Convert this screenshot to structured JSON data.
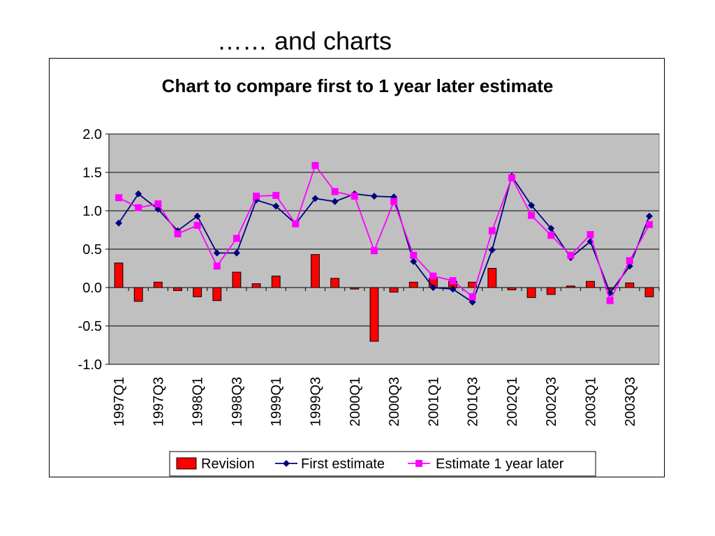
{
  "slide": {
    "title": "…… and charts"
  },
  "chart_data": {
    "type": "bar",
    "title": "Chart to compare first to 1 year later estimate",
    "xlabel": "",
    "ylabel": "",
    "ylim": [
      -1.0,
      2.0
    ],
    "yticks": [
      "2.0",
      "1.5",
      "1.0",
      "0.5",
      "0.0",
      "-0.5",
      "-1.0"
    ],
    "ytick_values": [
      2.0,
      1.5,
      1.0,
      0.5,
      0.0,
      -0.5,
      -1.0
    ],
    "grid": true,
    "legend_position": "bottom",
    "categories": [
      "1997Q1",
      "1997Q2",
      "1997Q3",
      "1997Q4",
      "1998Q1",
      "1998Q2",
      "1998Q3",
      "1998Q4",
      "1999Q1",
      "1999Q2",
      "1999Q3",
      "1999Q4",
      "2000Q1",
      "2000Q2",
      "2000Q3",
      "2000Q4",
      "2001Q1",
      "2001Q2",
      "2001Q3",
      "2001Q4",
      "2002Q1",
      "2002Q2",
      "2002Q3",
      "2002Q4",
      "2003Q1",
      "2003Q2",
      "2003Q3",
      "2003Q4"
    ],
    "visible_tick_labels": [
      "1997Q1",
      "1997Q3",
      "1998Q1",
      "1998Q3",
      "1999Q1",
      "1999Q3",
      "2000Q1",
      "2000Q3",
      "2001Q1",
      "2001Q3",
      "2002Q1",
      "2002Q3",
      "2003Q1",
      "2003Q3"
    ],
    "series": [
      {
        "name": "Revision",
        "type": "bar",
        "color": "#ff0000",
        "values": [
          0.32,
          -0.18,
          0.07,
          -0.04,
          -0.12,
          -0.17,
          0.2,
          0.05,
          0.15,
          0.0,
          0.43,
          0.12,
          -0.02,
          -0.7,
          -0.06,
          0.07,
          0.12,
          0.08,
          0.07,
          0.25,
          -0.03,
          -0.13,
          -0.09,
          0.02,
          0.08,
          -0.02,
          0.06,
          -0.12
        ]
      },
      {
        "name": "First estimate",
        "type": "line",
        "marker": "diamond",
        "color": "#000080",
        "values": [
          0.84,
          1.22,
          1.02,
          0.74,
          0.93,
          0.45,
          0.45,
          1.14,
          1.06,
          0.83,
          1.16,
          1.12,
          1.22,
          1.19,
          1.18,
          0.34,
          0.0,
          -0.02,
          -0.19,
          0.49,
          1.45,
          1.07,
          0.77,
          0.39,
          0.6,
          -0.07,
          0.28,
          0.93
        ]
      },
      {
        "name": "Estimate 1 year later",
        "type": "line",
        "marker": "square",
        "color": "#ff00ff",
        "values": [
          1.17,
          1.04,
          1.09,
          0.7,
          0.81,
          0.28,
          0.64,
          1.19,
          1.2,
          0.83,
          1.59,
          1.25,
          1.19,
          0.48,
          1.12,
          0.42,
          0.15,
          0.09,
          -0.12,
          0.74,
          1.43,
          0.94,
          0.68,
          0.42,
          0.69,
          -0.17,
          0.35,
          0.82
        ]
      }
    ]
  }
}
